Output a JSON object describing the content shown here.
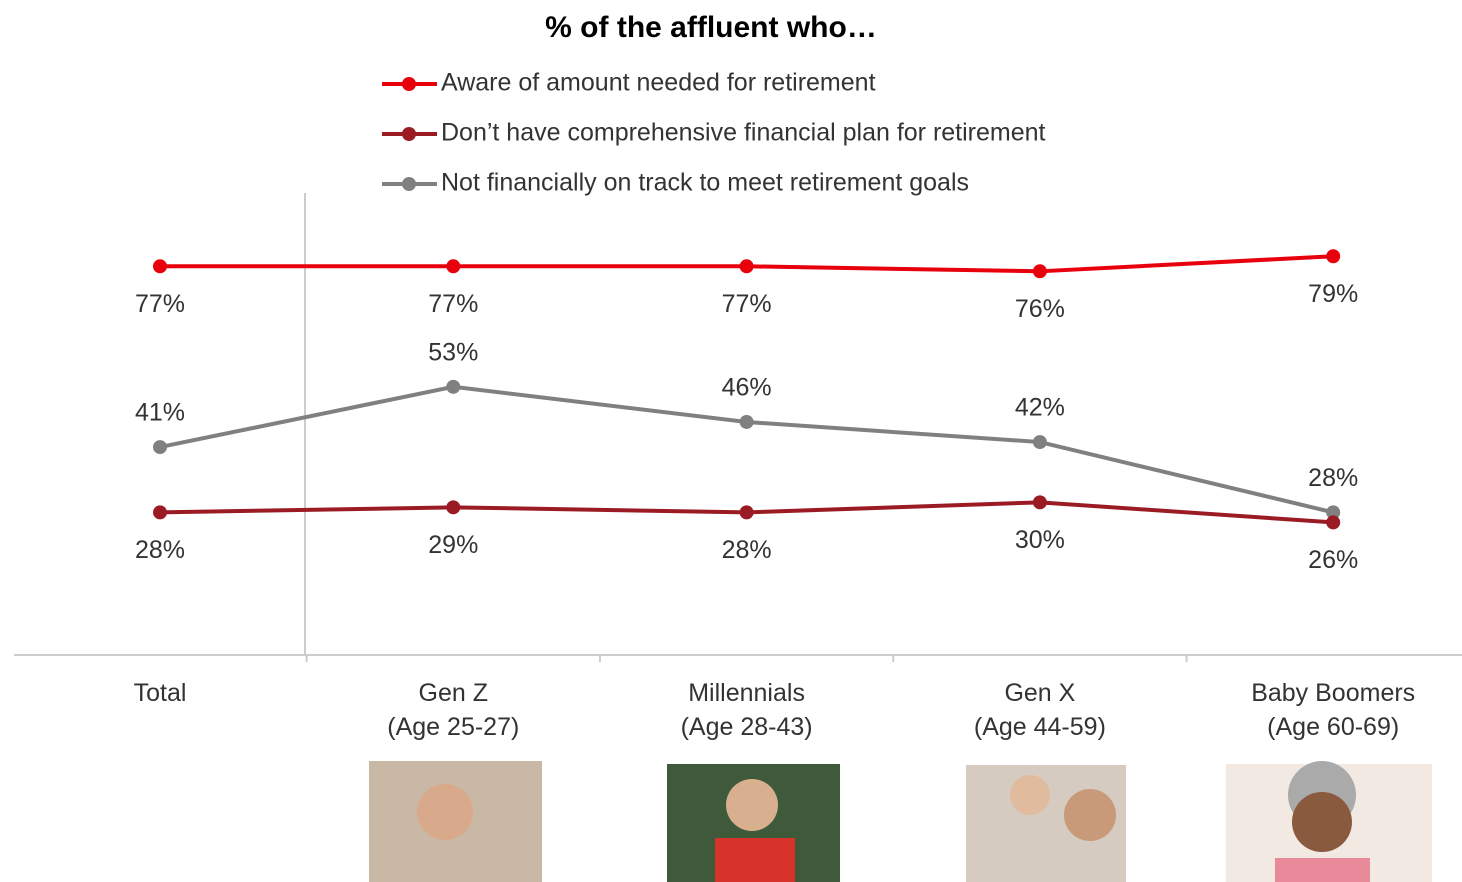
{
  "chart_data": {
    "type": "line",
    "title": "% of the affluent who…",
    "categories": [
      "Total",
      "Gen Z\n(Age 25-27)",
      "Millennials\n(Age 28-43)",
      "Gen X\n(Age 44-59)",
      "Baby Boomers\n(Age 60-69)"
    ],
    "series": [
      {
        "name": "Aware of amount needed for retirement",
        "color": "#e8000d",
        "values": [
          77,
          77,
          77,
          76,
          79
        ],
        "value_labels": [
          "77%",
          "77%",
          "77%",
          "76%",
          "79%"
        ]
      },
      {
        "name": "Don’t have comprehensive financial plan for retirement",
        "color": "#9b1b25",
        "values": [
          28,
          29,
          28,
          30,
          26
        ],
        "value_labels": [
          "28%",
          "29%",
          "28%",
          "30%",
          "26%"
        ]
      },
      {
        "name": "Not financially on track to meet retirement goals",
        "color": "#808080",
        "values": [
          41,
          53,
          46,
          42,
          28
        ],
        "value_labels": [
          "41%",
          "53%",
          "46%",
          "42%",
          "28%"
        ]
      }
    ],
    "ylim": [
      0,
      90
    ]
  }
}
